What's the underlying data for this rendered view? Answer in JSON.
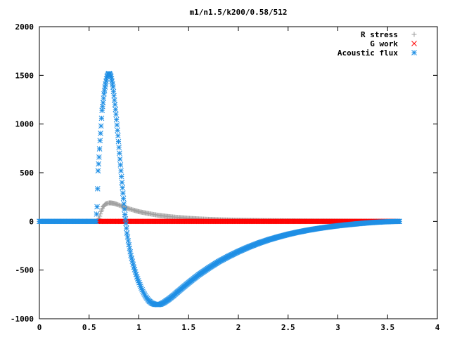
{
  "chart_data": {
    "type": "scatter",
    "title": "m1/n1.5/k200/0.58/512",
    "xlabel": "",
    "ylabel": "",
    "xlim": [
      0,
      4
    ],
    "ylim": [
      -1000,
      2000
    ],
    "x_ticks": [
      "0",
      "0.5",
      "1",
      "1.5",
      "2",
      "2.5",
      "3",
      "3.5",
      "4"
    ],
    "y_ticks": [
      "-1000",
      "-500",
      "0",
      "500",
      "1000",
      "1500",
      "2000"
    ],
    "grid": false,
    "legend_position": "top-right",
    "series": [
      {
        "name": "R stress",
        "marker": "+",
        "color": "#a0a0a0",
        "points": [
          [
            0.58,
            0
          ],
          [
            0.6,
            30
          ],
          [
            0.62,
            100
          ],
          [
            0.64,
            150
          ],
          [
            0.66,
            175
          ],
          [
            0.68,
            185
          ],
          [
            0.7,
            190
          ],
          [
            0.72,
            190
          ],
          [
            0.75,
            185
          ],
          [
            0.78,
            175
          ],
          [
            0.82,
            160
          ],
          [
            0.86,
            145
          ],
          [
            0.9,
            130
          ],
          [
            0.95,
            115
          ],
          [
            1.0,
            100
          ],
          [
            1.1,
            80
          ],
          [
            1.2,
            62
          ],
          [
            1.3,
            50
          ],
          [
            1.4,
            40
          ],
          [
            1.5,
            32
          ],
          [
            1.6,
            26
          ],
          [
            1.7,
            21
          ],
          [
            1.8,
            17
          ],
          [
            2.0,
            12
          ],
          [
            2.2,
            9
          ],
          [
            2.5,
            6
          ],
          [
            2.8,
            4
          ],
          [
            3.1,
            3
          ],
          [
            3.4,
            2
          ],
          [
            3.6,
            1
          ]
        ]
      },
      {
        "name": "G work",
        "marker": "x",
        "color": "#ff0000",
        "points": [
          [
            0.58,
            0
          ],
          [
            0.8,
            0
          ],
          [
            1.0,
            0
          ],
          [
            1.5,
            0
          ],
          [
            2.0,
            0
          ],
          [
            2.5,
            0
          ],
          [
            3.0,
            0
          ],
          [
            3.6,
            0
          ]
        ]
      },
      {
        "name": "Acoustic flux",
        "marker": "*",
        "color": "#1f8fe5",
        "points": [
          [
            0,
            0
          ],
          [
            0.2,
            0
          ],
          [
            0.4,
            0
          ],
          [
            0.57,
            0
          ],
          [
            0.58,
            150
          ],
          [
            0.59,
            520
          ],
          [
            0.6,
            660
          ],
          [
            0.61,
            830
          ],
          [
            0.62,
            980
          ],
          [
            0.63,
            1140
          ],
          [
            0.64,
            1220
          ],
          [
            0.65,
            1310
          ],
          [
            0.66,
            1380
          ],
          [
            0.67,
            1440
          ],
          [
            0.68,
            1490
          ],
          [
            0.69,
            1510
          ],
          [
            0.7,
            1520
          ],
          [
            0.71,
            1510
          ],
          [
            0.72,
            1490
          ],
          [
            0.73,
            1440
          ],
          [
            0.74,
            1380
          ],
          [
            0.75,
            1290
          ],
          [
            0.76,
            1200
          ],
          [
            0.77,
            1100
          ],
          [
            0.78,
            990
          ],
          [
            0.79,
            880
          ],
          [
            0.8,
            760
          ],
          [
            0.81,
            640
          ],
          [
            0.82,
            520
          ],
          [
            0.83,
            400
          ],
          [
            0.84,
            290
          ],
          [
            0.85,
            180
          ],
          [
            0.86,
            70
          ],
          [
            0.87,
            -20
          ],
          [
            0.88,
            -120
          ],
          [
            0.9,
            -240
          ],
          [
            0.92,
            -350
          ],
          [
            0.95,
            -470
          ],
          [
            0.98,
            -570
          ],
          [
            1.01,
            -650
          ],
          [
            1.04,
            -720
          ],
          [
            1.07,
            -775
          ],
          [
            1.1,
            -815
          ],
          [
            1.13,
            -840
          ],
          [
            1.16,
            -852
          ],
          [
            1.19,
            -855
          ],
          [
            1.22,
            -850
          ],
          [
            1.25,
            -835
          ],
          [
            1.3,
            -800
          ],
          [
            1.35,
            -760
          ],
          [
            1.4,
            -715
          ],
          [
            1.5,
            -630
          ],
          [
            1.6,
            -550
          ],
          [
            1.7,
            -480
          ],
          [
            1.8,
            -415
          ],
          [
            1.9,
            -360
          ],
          [
            2.0,
            -310
          ],
          [
            2.1,
            -265
          ],
          [
            2.2,
            -225
          ],
          [
            2.3,
            -190
          ],
          [
            2.4,
            -160
          ],
          [
            2.5,
            -133
          ],
          [
            2.6,
            -110
          ],
          [
            2.7,
            -90
          ],
          [
            2.8,
            -73
          ],
          [
            2.9,
            -58
          ],
          [
            3.0,
            -45
          ],
          [
            3.1,
            -34
          ],
          [
            3.2,
            -24
          ],
          [
            3.3,
            -15
          ],
          [
            3.4,
            -8
          ],
          [
            3.5,
            -3
          ],
          [
            3.6,
            0
          ],
          [
            3.62,
            0
          ]
        ]
      }
    ]
  }
}
